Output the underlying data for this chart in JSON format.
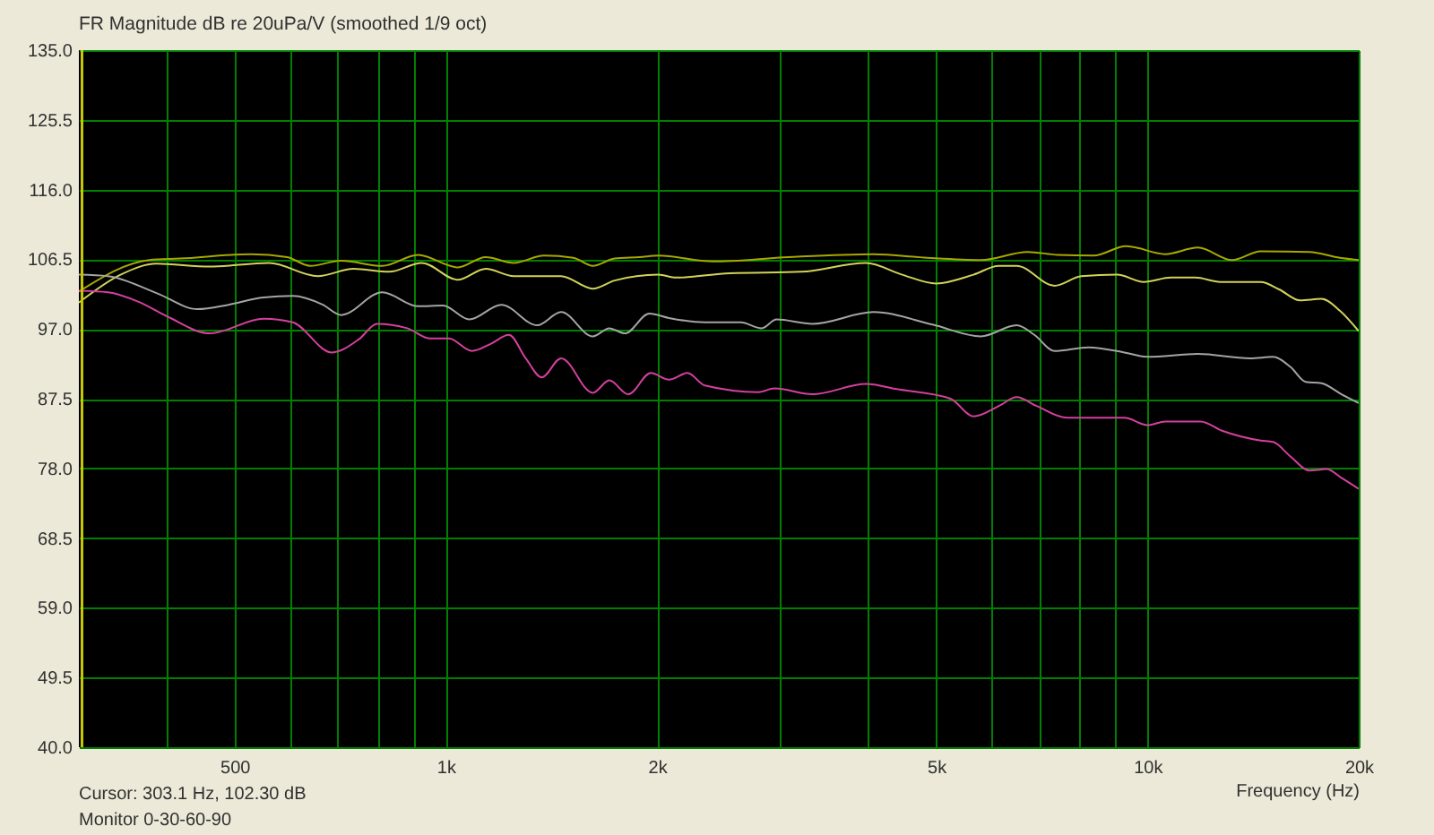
{
  "chart_data": {
    "type": "line",
    "title": "FR Magnitude dB re 20uPa/V (smoothed 1/9 oct)",
    "xlabel": "Frequency (Hz)",
    "annotations": [
      "Cursor: 303.1 Hz, 102.30 dB",
      "Monitor 0-30-60-90"
    ],
    "log": "x",
    "grid": true,
    "xlim": [
      300,
      20000
    ],
    "xticks": [
      {
        "value": 400,
        "label": null
      },
      500,
      {
        "value": 600,
        "label": null
      },
      {
        "value": 700,
        "label": null
      },
      {
        "value": 800,
        "label": null
      },
      {
        "value": 900,
        "label": null
      },
      {
        "value": 1000,
        "label": "1k"
      },
      {
        "value": 2000,
        "label": "2k"
      },
      {
        "value": 3000,
        "label": null
      },
      {
        "value": 4000,
        "label": null
      },
      {
        "value": 5000,
        "label": "5k"
      },
      {
        "value": 6000,
        "label": null
      },
      {
        "value": 7000,
        "label": null
      },
      {
        "value": 8000,
        "label": null
      },
      {
        "value": 9000,
        "label": null
      },
      {
        "value": 10000,
        "label": "10k"
      },
      {
        "value": 20000,
        "label": "20k"
      }
    ],
    "ylim": [
      40,
      135
    ],
    "yticks": [
      {
        "value": 40,
        "label": "40.0"
      },
      49.5,
      {
        "value": 59,
        "label": "59.0"
      },
      68.5,
      {
        "value": 78,
        "label": "78.0"
      },
      87.5,
      {
        "value": 97,
        "label": "97.0"
      },
      106.5,
      {
        "value": 116,
        "label": "116.0"
      },
      125.5,
      {
        "value": 135,
        "label": "135.0"
      }
    ],
    "ref_lines": [
      {
        "axis": "x",
        "value": 303.1,
        "color": "#c8c800"
      }
    ],
    "series": [
      {
        "color": "#a8a800",
        "x": [
          300,
          378,
          418,
          528,
          594,
          641,
          709,
          812,
          913,
          1040,
          1140,
          1250,
          1380,
          1520,
          1620,
          1740,
          1890,
          2010,
          2400,
          3080,
          4070,
          4850,
          5790,
          6750,
          7450,
          8380,
          9320,
          10600,
          11800,
          13200,
          14500,
          17000,
          18800,
          20000
        ],
        "values": [
          102.1,
          106.4,
          106.6,
          107.2,
          106.8,
          105.6,
          106.3,
          105.6,
          107.1,
          105.4,
          106.8,
          106.0,
          107.0,
          106.7,
          105.6,
          106.6,
          106.8,
          107.0,
          106.2,
          106.8,
          107.2,
          106.7,
          106.4,
          107.5,
          107.1,
          107.0,
          108.3,
          107.2,
          108.1,
          106.4,
          107.6,
          107.5,
          106.7,
          106.4
        ]
      },
      {
        "color": "#d2d25a",
        "x": [
          300,
          344,
          387,
          461,
          560,
          657,
          739,
          831,
          924,
          1040,
          1140,
          1250,
          1460,
          1620,
          1740,
          2010,
          2130,
          2540,
          3210,
          3970,
          4470,
          5000,
          5650,
          6140,
          6510,
          7370,
          8050,
          9050,
          9880,
          10800,
          11700,
          12700,
          14500,
          15400,
          16500,
          17700,
          18800,
          20000
        ],
        "values": [
          100.6,
          104.4,
          105.9,
          105.5,
          106.0,
          104.2,
          105.2,
          104.8,
          106.0,
          103.7,
          105.2,
          104.2,
          104.2,
          102.5,
          103.6,
          104.4,
          104.0,
          104.6,
          104.8,
          106.0,
          104.4,
          103.2,
          104.4,
          105.6,
          105.6,
          102.9,
          104.2,
          104.4,
          103.4,
          104.0,
          104.0,
          103.4,
          103.4,
          102.4,
          100.9,
          101.1,
          99.5,
          96.7
        ]
      },
      {
        "color": "#a4a4a4",
        "x": [
          300,
          330,
          387,
          443,
          490,
          550,
          605,
          668,
          709,
          812,
          913,
          991,
          1080,
          1200,
          1350,
          1460,
          1620,
          1710,
          1800,
          1950,
          2080,
          2340,
          2630,
          2820,
          2960,
          3330,
          4070,
          4940,
          5790,
          6510,
          6900,
          7370,
          8240,
          9270,
          10000,
          11800,
          14000,
          15100,
          16000,
          16800,
          17700,
          18900,
          20000
        ],
        "values": [
          104.4,
          104.2,
          101.9,
          99.7,
          100.3,
          101.3,
          101.5,
          100.3,
          98.9,
          102.0,
          100.1,
          100.2,
          98.3,
          100.3,
          97.5,
          99.3,
          96.0,
          97.1,
          96.4,
          99.1,
          98.5,
          97.9,
          97.9,
          97.1,
          98.3,
          97.7,
          99.3,
          97.6,
          96.0,
          97.5,
          96.2,
          94.0,
          94.5,
          93.8,
          93.2,
          93.6,
          93.0,
          93.2,
          91.8,
          89.8,
          89.6,
          88.1,
          86.9
        ]
      },
      {
        "color": "#d4409e",
        "x": [
          300,
          330,
          365,
          401,
          461,
          550,
          605,
          688,
          752,
          798,
          881,
          951,
          1010,
          1090,
          1160,
          1230,
          1300,
          1370,
          1460,
          1620,
          1710,
          1820,
          1960,
          2080,
          2210,
          2340,
          2790,
          2940,
          3330,
          3970,
          4390,
          5240,
          5650,
          6140,
          6510,
          6950,
          7680,
          9270,
          10000,
          10600,
          11900,
          12800,
          14500,
          15100,
          16000,
          17000,
          18000,
          18900,
          20000
        ],
        "values": [
          102.2,
          102.0,
          100.7,
          98.7,
          96.4,
          98.4,
          97.9,
          93.8,
          95.6,
          97.7,
          97.1,
          95.7,
          95.7,
          94.0,
          95.0,
          96.2,
          93.0,
          90.4,
          93.0,
          88.3,
          90.0,
          88.1,
          91.0,
          90.1,
          91.0,
          89.3,
          88.4,
          88.9,
          88.1,
          89.5,
          88.8,
          87.5,
          85.1,
          86.5,
          87.7,
          86.5,
          84.9,
          84.9,
          83.9,
          84.4,
          84.4,
          83.1,
          81.8,
          81.6,
          79.6,
          77.7,
          77.9,
          76.7,
          75.2
        ]
      }
    ]
  }
}
